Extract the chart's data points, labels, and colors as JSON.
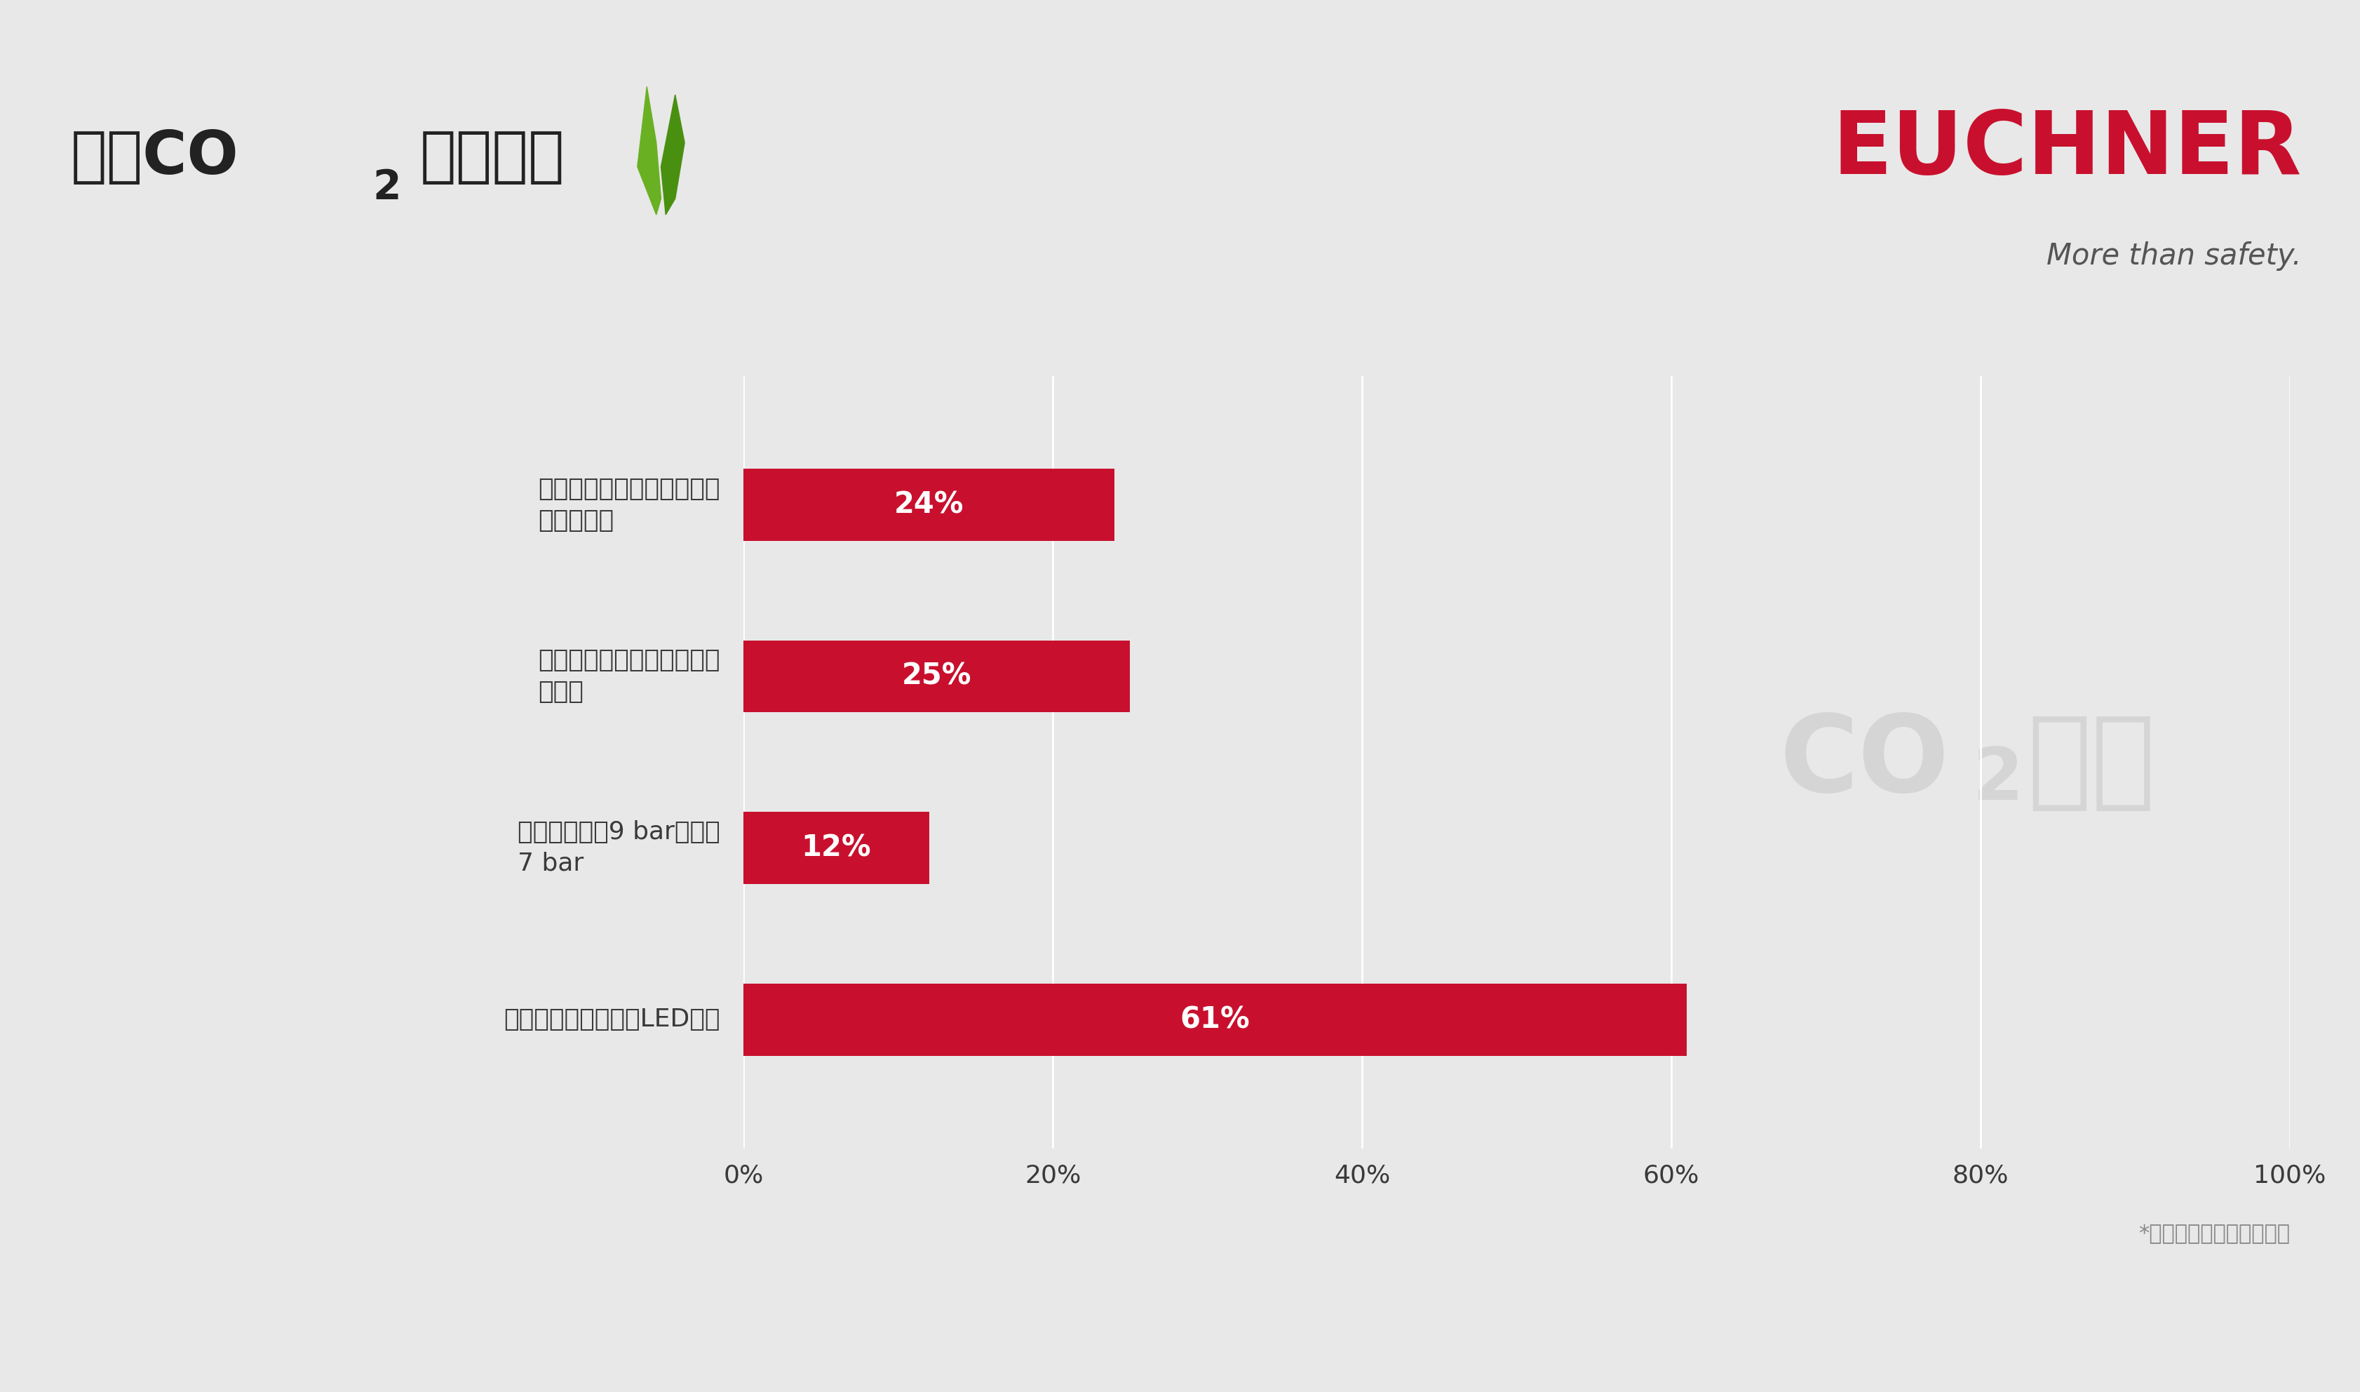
{
  "title_part1": "避免CO",
  "title_sub": "2",
  "title_part2": "排放措施",
  "euchner_text": "EUCHNER",
  "euchner_sub": "More than safety.",
  "background_color": "#e8e8e8",
  "bar_color": "#c8102e",
  "bar_label_color": "#ffffff",
  "categories": [
    "在物流建筑中转换为LED照明",
    "将压力水平从9 bar降低到\n7 bar",
    "在生产建筑中使用地热能和\n热回收",
    "采用热电联产电站为物流建\n筑提供能源"
  ],
  "values": [
    61,
    12,
    25,
    24
  ],
  "value_labels": [
    "61%",
    "12%",
    "25%",
    "24%"
  ],
  "xlim": [
    0,
    100
  ],
  "xtick_labels": [
    "0%",
    "20%",
    "40%",
    "60%",
    "80%",
    "100%"
  ],
  "xtick_values": [
    0,
    20,
    40,
    60,
    80,
    100
  ],
  "watermark_line1": "CO",
  "watermark_sub": "2",
  "watermark_line2": "节约",
  "footnote": "*与措施实施前的情况相比",
  "fig_bg": "#e8e8e8",
  "axis_bg": "#e8e8e8",
  "grid_color": "#ffffff",
  "text_color": "#3a3a3a",
  "euchner_color": "#c8102e",
  "leaf_color1": "#6ab023",
  "leaf_color2": "#4a9010"
}
